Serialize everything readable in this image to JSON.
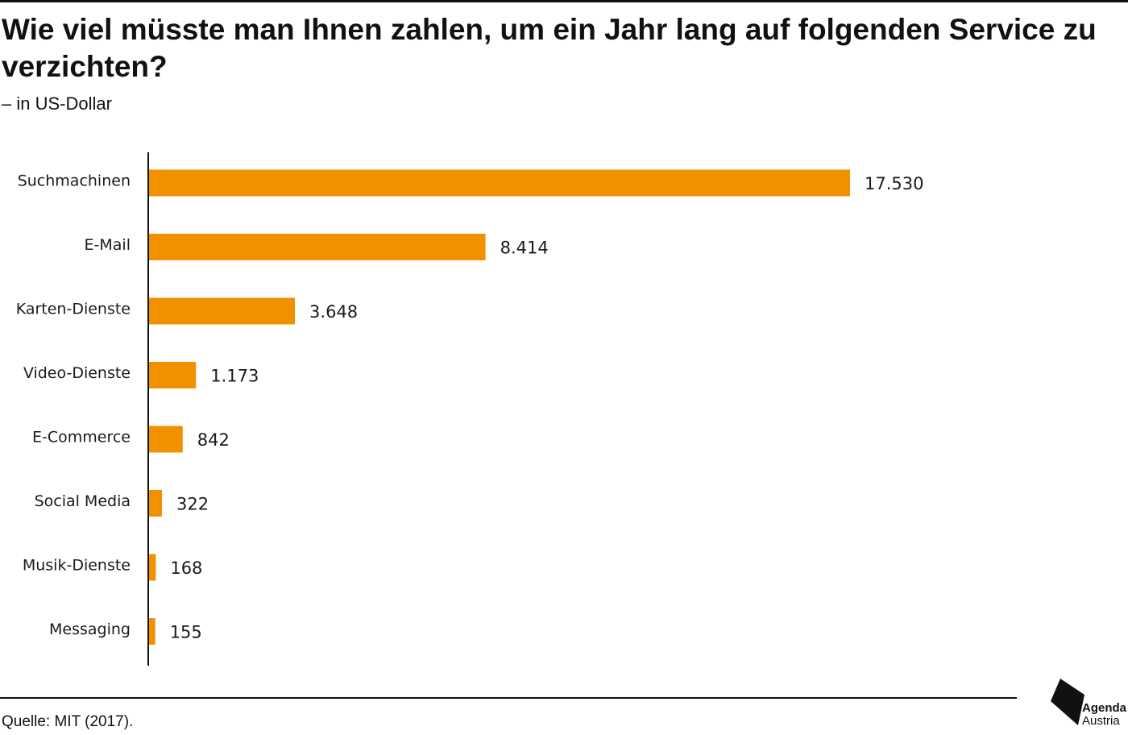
{
  "header": {
    "title": "Wie viel müsste man Ihnen zahlen, um ein Jahr lang auf folgenden Service zu verzichten?",
    "subtitle": "– in US-Dollar"
  },
  "chart_data": {
    "type": "bar",
    "orientation": "horizontal",
    "title": "Wie viel müsste man Ihnen zahlen, um ein Jahr lang auf folgenden Service zu verzichten?",
    "subtitle": "– in US-Dollar",
    "categories": [
      "Suchmachinen",
      "E-Mail",
      "Karten-Dienste",
      "Video-Dienste",
      "E-Commerce",
      "Social Media",
      "Musik-Dienste",
      "Messaging"
    ],
    "values": [
      17530,
      8414,
      3648,
      1173,
      842,
      322,
      168,
      155
    ],
    "value_labels": [
      "17.530",
      "8.414",
      "3.648",
      "1.173",
      "842",
      "322",
      "168",
      "155"
    ],
    "xlim": [
      0,
      17530
    ],
    "grid": false,
    "bar_color": "#f29100",
    "axis_color": "#111111"
  },
  "footer": {
    "source": "Quelle: MIT (2017).",
    "logo_line1": "Agenda",
    "logo_line2": "Austria"
  }
}
